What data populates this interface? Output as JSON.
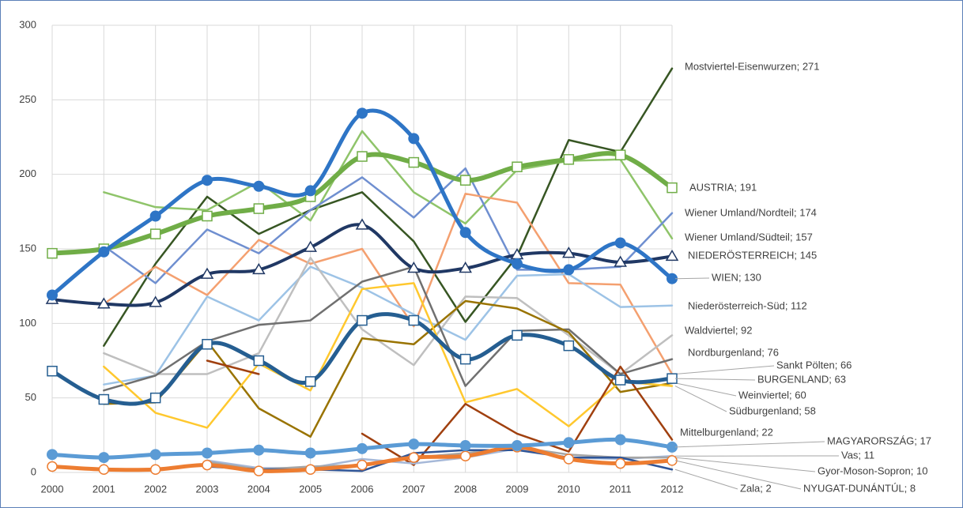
{
  "chart_data": {
    "type": "line",
    "categories": [
      "2000",
      "2001",
      "2002",
      "2003",
      "2004",
      "2005",
      "2006",
      "2007",
      "2008",
      "2009",
      "2010",
      "2011",
      "2012"
    ],
    "ylim": [
      0,
      300
    ],
    "yticks": [
      0,
      50,
      100,
      150,
      200,
      250,
      300
    ],
    "grid": true,
    "series": [
      {
        "name": "Mostviertel-Eisenwurzen; 271",
        "color": "#375623",
        "width": 2.5,
        "values": [
          null,
          85,
          140,
          185,
          160,
          176,
          188,
          155,
          101,
          145,
          223,
          215,
          271
        ]
      },
      {
        "name": "Wiener Umland/Südteil; 157",
        "color": "#8fc46a",
        "width": 2.5,
        "values": [
          null,
          188,
          178,
          176,
          195,
          169,
          229,
          188,
          167,
          203,
          209,
          210,
          157
        ]
      },
      {
        "name": "Wiener Umland/Nordteil; 174",
        "color": "#6f8fd0",
        "width": 2.5,
        "values": [
          null,
          152,
          127,
          163,
          147,
          176,
          198,
          171,
          204,
          136,
          136,
          138,
          174
        ]
      },
      {
        "name": "Sankt Pölten; 66",
        "color": "#f4a070",
        "width": 2.5,
        "values": [
          null,
          113,
          138,
          119,
          156,
          140,
          150,
          98,
          187,
          181,
          127,
          126,
          66
        ]
      },
      {
        "name": "Niederösterreich-Süd; 112",
        "color": "#9dc3e6",
        "width": 2.5,
        "values": [
          null,
          59,
          65,
          118,
          102,
          138,
          124,
          106,
          89,
          132,
          133,
          111,
          112
        ]
      },
      {
        "name": "Waldviertel; 92",
        "color": "#bfbfbf",
        "width": 2.5,
        "values": [
          null,
          80,
          66,
          66,
          80,
          144,
          96,
          72,
          118,
          117,
          92,
          66,
          92
        ]
      },
      {
        "name": "Nordburgenland; 76",
        "color": "#707070",
        "width": 2.5,
        "values": [
          null,
          55,
          65,
          88,
          99,
          102,
          128,
          138,
          58,
          95,
          96,
          66,
          76
        ]
      },
      {
        "name": "Weinviertel; 60",
        "color": "#997300",
        "width": 2.5,
        "values": [
          null,
          46,
          47,
          88,
          43,
          24,
          90,
          86,
          115,
          110,
          94,
          54,
          60
        ]
      },
      {
        "name": "Südburgenland; 58",
        "color": "#ffc82e",
        "width": 2.5,
        "values": [
          null,
          71,
          40,
          30,
          73,
          55,
          123,
          127,
          47,
          56,
          31,
          61,
          58
        ]
      },
      {
        "name": "Mittelburgenland; 22",
        "color": "#a0400f",
        "width": 2.5,
        "values": [
          null,
          null,
          null,
          75,
          66,
          null,
          26,
          5,
          46,
          26,
          14,
          71,
          22
        ]
      },
      {
        "name": "AUSTRIA; 191",
        "color": "#70ad47",
        "width": 6,
        "marker": "square-open",
        "smooth": true,
        "values": [
          147,
          150,
          160,
          172,
          177,
          185,
          212,
          208,
          196,
          205,
          210,
          213,
          191
        ]
      },
      {
        "name": "NIEDERÖSTERREICH; 145",
        "color": "#203864",
        "width": 4,
        "marker": "triangle-open",
        "smooth": true,
        "values": [
          116,
          113,
          114,
          133,
          136,
          151,
          166,
          137,
          137,
          146,
          147,
          141,
          145
        ]
      },
      {
        "name": "BURGENLAND; 63",
        "color": "#255e91",
        "width": 5,
        "marker": "square-open",
        "smooth": true,
        "values": [
          68,
          49,
          50,
          86,
          75,
          61,
          102,
          102,
          76,
          92,
          85,
          62,
          63
        ]
      },
      {
        "name": "WIEN; 130",
        "color": "#2e75c6",
        "width": 5,
        "marker": "circle",
        "smooth": true,
        "values": [
          119,
          148,
          172,
          196,
          192,
          189,
          241,
          224,
          161,
          140,
          136,
          154,
          130
        ]
      },
      {
        "name": "Vas; 11",
        "color": "#a5b8d8",
        "width": 2.5,
        "values": [
          null,
          null,
          null,
          8,
          3,
          3,
          9,
          6,
          10,
          16,
          10,
          9,
          11
        ]
      },
      {
        "name": "Gyor-Moson-Sopron; 10",
        "color": "#a5a5a5",
        "width": 2.5,
        "values": [
          null,
          null,
          null,
          7,
          2,
          4,
          5,
          10,
          13,
          17,
          12,
          10,
          10
        ]
      },
      {
        "name": "Zala; 2",
        "color": "#2f5597",
        "width": 2.5,
        "values": [
          null,
          null,
          null,
          4,
          2,
          2,
          1,
          13,
          15,
          15,
          10,
          10,
          2
        ]
      },
      {
        "name": "NYUGAT-DUNÁNTÚL; 8",
        "color": "#ed7d31",
        "width": 5,
        "marker": "circle-open",
        "smooth": true,
        "values": [
          4,
          2,
          2,
          5,
          1,
          2,
          5,
          10,
          11,
          17,
          9,
          6,
          8
        ]
      },
      {
        "name": "MAGYARORSZÁG; 17",
        "color": "#5b9bd5",
        "width": 5,
        "marker": "circle",
        "smooth": true,
        "values": [
          12,
          10,
          12,
          13,
          15,
          13,
          16,
          19,
          18,
          18,
          20,
          22,
          17
        ]
      }
    ]
  }
}
